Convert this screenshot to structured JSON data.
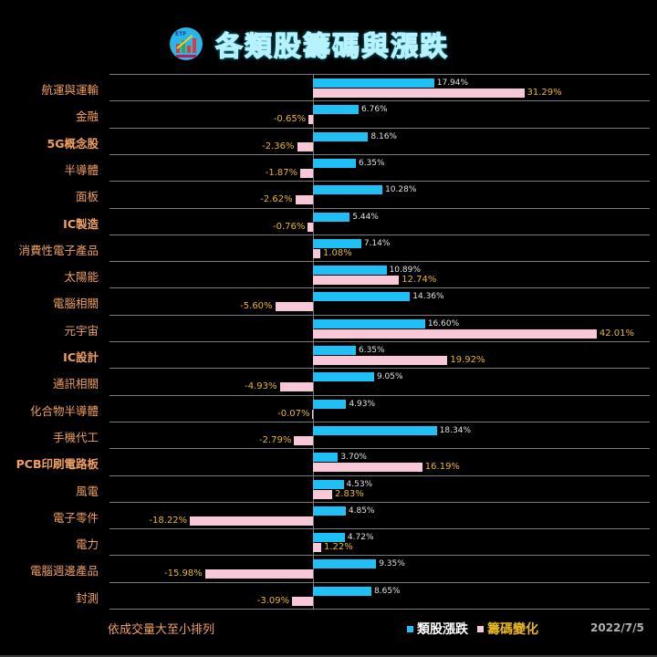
{
  "title": "各類股籌碼與漲跌",
  "logo": {
    "icon": "stock-chart-logo-icon"
  },
  "footer": {
    "note": "依成交量大至小排列",
    "date": "2022/7/5"
  },
  "legend": [
    {
      "label": "類股漲跌",
      "color": "#1ec0f5",
      "text_color": "#ffffff"
    },
    {
      "label": "籌碼變化",
      "color": "#f8c8d8",
      "text_color": "#e8b820"
    }
  ],
  "colors": {
    "background": "#000000",
    "category_label": "#f0a060",
    "price_bar": "#1ec0f5",
    "chip_bar": "#f8c8d8",
    "chip_value_text": "#e8b820",
    "price_value_text": "#e0e0e0",
    "gridline": "#7a7a7a",
    "title": "#2a8fa0"
  },
  "chart_data": {
    "type": "bar",
    "orientation": "horizontal",
    "title": "各類股籌碼與漲跌",
    "xlabel": "",
    "ylabel": "",
    "note": "依成交量大至小排列",
    "date": "2022/7/5",
    "legend_position": "bottom",
    "grid": true,
    "xlim": [
      -23,
      47
    ],
    "categories": [
      "航運與運輸",
      "金融",
      "5G概念股",
      "半導體",
      "面板",
      "IC製造",
      "消費性電子產品",
      "太陽能",
      "電腦相關",
      "元宇宙",
      "IC設計",
      "通訊相關",
      "化合物半導體",
      "手機代工",
      "PCB印刷電路板",
      "風電",
      "電子零件",
      "電力",
      "電腦週邊產品",
      "封測"
    ],
    "series": [
      {
        "name": "類股漲跌",
        "values": [
          17.94,
          6.76,
          8.16,
          6.35,
          10.28,
          5.44,
          7.14,
          10.89,
          14.36,
          16.6,
          6.35,
          9.05,
          4.93,
          18.34,
          3.7,
          4.53,
          4.85,
          4.72,
          9.35,
          8.65
        ]
      },
      {
        "name": "籌碼變化",
        "values": [
          31.29,
          -0.65,
          -2.36,
          -1.87,
          -2.62,
          -0.76,
          1.08,
          12.74,
          -5.6,
          42.01,
          19.92,
          -4.93,
          -0.07,
          -2.79,
          16.19,
          2.83,
          -18.22,
          1.22,
          -15.98,
          -3.09
        ]
      }
    ],
    "labels": {
      "類股漲跌": [
        "17.94%",
        "6.76%",
        "8.16%",
        "6.35%",
        "10.28%",
        "5.44%",
        "7.14%",
        "10.89%",
        "14.36%",
        "16.60%",
        "6.35%",
        "9.05%",
        "4.93%",
        "18.34%",
        "3.70%",
        "4.53%",
        "4.85%",
        "4.72%",
        "9.35%",
        "8.65%"
      ],
      "籌碼變化": [
        "31.29%",
        "-0.65%",
        "-2.36%",
        "-1.87%",
        "-2.62%",
        "-0.76%",
        "1.08%",
        "12.74%",
        "-5.60%",
        "42.01%",
        "19.92%",
        "-4.93%",
        "-0.07%",
        "-2.79%",
        "16.19%",
        "2.83%",
        "-18.22%",
        "1.22%",
        "-15.98%",
        "-3.09%"
      ]
    },
    "bold_categories": [
      "5G概念股",
      "IC製造",
      "IC設計",
      "PCB印刷電路板"
    ]
  }
}
